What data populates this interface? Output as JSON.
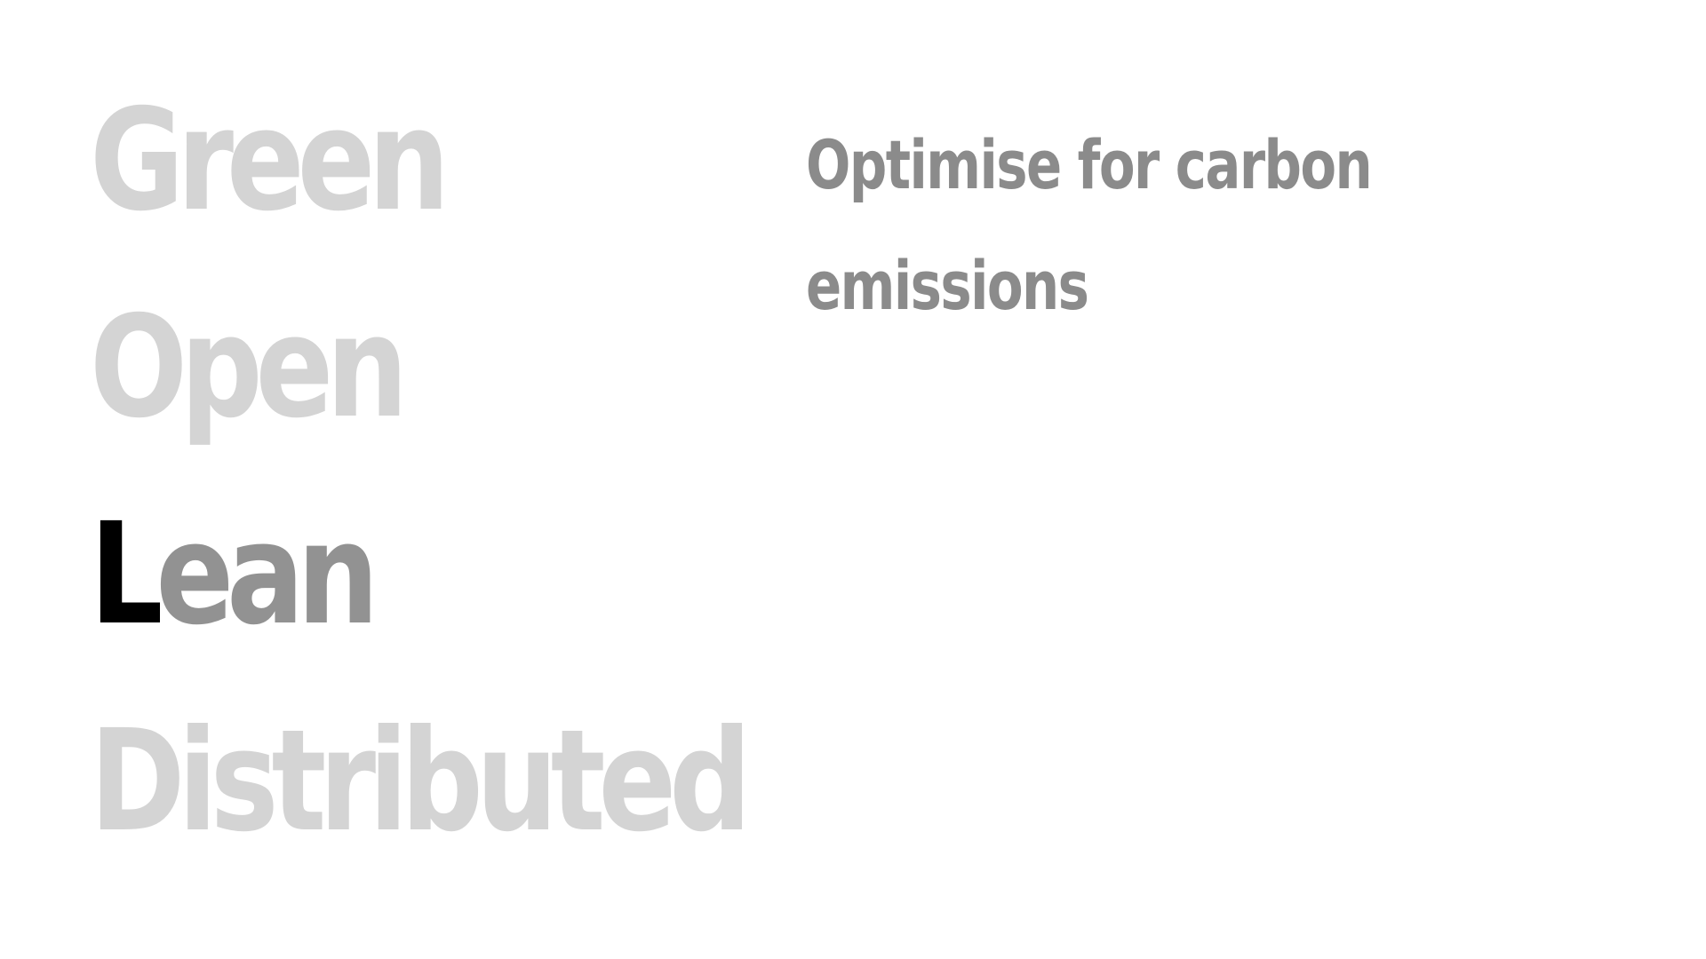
{
  "principles": {
    "green": "Green",
    "open": "Open",
    "lean_initial": "L",
    "lean_rest": "ean",
    "distributed": "Distributed"
  },
  "tagline": "Optimise for carbon emissions",
  "colors": {
    "background": "#ffffff",
    "inactive_word": "#d4d4d4",
    "active_initial": "#000000",
    "active_rest": "#929292",
    "tagline": "#8b8b8b"
  }
}
